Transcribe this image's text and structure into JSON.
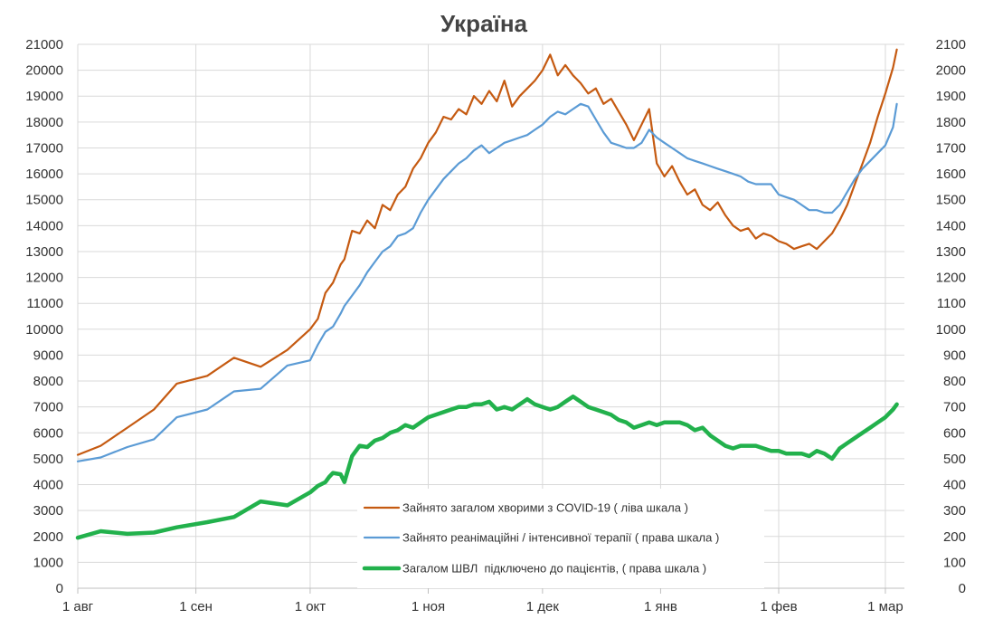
{
  "chart_data": {
    "type": "line",
    "title": "Україна",
    "x_ticks": [
      "1 авг",
      "1 сен",
      "1 окт",
      "1 ноя",
      "1 дек",
      "1 янв",
      "1 фев",
      "1 мар"
    ],
    "x_tick_day": [
      0,
      31,
      61,
      92,
      122,
      153,
      184,
      212
    ],
    "x_range": [
      0,
      217
    ],
    "left_axis": {
      "ylim": [
        0,
        21000
      ],
      "step": 1000,
      "ticks": [
        "0",
        "1000",
        "2000",
        "3000",
        "4000",
        "5000",
        "6000",
        "7000",
        "8000",
        "9000",
        "10000",
        "11000",
        "12000",
        "13000",
        "14000",
        "15000",
        "16000",
        "17000",
        "18000",
        "19000",
        "20000",
        "21000"
      ]
    },
    "right_axis": {
      "ylim": [
        0,
        2100
      ],
      "step": 100,
      "ticks": [
        "0",
        "100",
        "200",
        "300",
        "400",
        "500",
        "600",
        "700",
        "800",
        "900",
        "1000",
        "1100",
        "1200",
        "1300",
        "1400",
        "1500",
        "1600",
        "1700",
        "1800",
        "1900",
        "2000",
        "2100"
      ]
    },
    "x_unit": "days since 1 авг",
    "legend_position": "lower-center",
    "series": [
      {
        "name": "Зайнято загалом хворими з COVID-19 ( ліва шкала )",
        "axis": "left",
        "color": "#c55a11",
        "x": [
          0,
          6,
          13,
          20,
          26,
          34,
          41,
          48,
          55,
          61,
          63,
          65,
          66,
          67,
          69,
          70,
          72,
          74,
          76,
          78,
          80,
          82,
          84,
          86,
          88,
          90,
          92,
          94,
          96,
          98,
          100,
          102,
          104,
          106,
          108,
          110,
          112,
          114,
          116,
          118,
          120,
          122,
          124,
          126,
          128,
          130,
          132,
          134,
          136,
          138,
          140,
          142,
          144,
          146,
          148,
          150,
          152,
          154,
          156,
          158,
          160,
          162,
          164,
          166,
          168,
          170,
          172,
          174,
          176,
          178,
          180,
          182,
          184,
          186,
          188,
          190,
          192,
          194,
          196,
          198,
          200,
          202,
          204,
          206,
          208,
          210,
          212,
          214,
          215
        ],
        "values": [
          5150,
          5500,
          6200,
          6900,
          7900,
          8200,
          8900,
          8550,
          9200,
          10000,
          10400,
          11400,
          11600,
          11800,
          12500,
          12700,
          13800,
          13700,
          14200,
          13900,
          14800,
          14600,
          15200,
          15500,
          16200,
          16600,
          17200,
          17600,
          18200,
          18100,
          18500,
          18300,
          19000,
          18700,
          19200,
          18800,
          19600,
          18600,
          19000,
          19300,
          19600,
          20000,
          20600,
          19800,
          20200,
          19800,
          19500,
          19100,
          19300,
          18700,
          18900,
          18400,
          17900,
          17300,
          17900,
          18500,
          16400,
          15900,
          16300,
          15700,
          15200,
          15400,
          14800,
          14600,
          14900,
          14400,
          14000,
          13800,
          13900,
          13500,
          13700,
          13600,
          13400,
          13300,
          13100,
          13200,
          13300,
          13100,
          13400,
          13700,
          14200,
          14800,
          15600,
          16400,
          17200,
          18200,
          19100,
          20100,
          20800
        ]
      },
      {
        "name": "Зайнято реанімаційні / інтенсивної терапії ( права шкала )",
        "axis": "right",
        "color": "#5b9bd5",
        "x": [
          0,
          6,
          13,
          20,
          26,
          34,
          41,
          48,
          55,
          61,
          63,
          65,
          66,
          67,
          69,
          70,
          72,
          74,
          76,
          78,
          80,
          82,
          84,
          86,
          88,
          90,
          92,
          94,
          96,
          98,
          100,
          102,
          104,
          106,
          108,
          110,
          112,
          114,
          116,
          118,
          120,
          122,
          124,
          126,
          128,
          130,
          132,
          134,
          136,
          138,
          140,
          142,
          144,
          146,
          148,
          150,
          152,
          154,
          156,
          158,
          160,
          162,
          164,
          166,
          168,
          170,
          172,
          174,
          176,
          178,
          180,
          182,
          184,
          186,
          188,
          190,
          192,
          194,
          196,
          198,
          200,
          202,
          204,
          206,
          208,
          210,
          212,
          214,
          215
        ],
        "values": [
          490,
          505,
          545,
          575,
          660,
          690,
          760,
          770,
          860,
          880,
          940,
          990,
          1000,
          1010,
          1060,
          1090,
          1130,
          1170,
          1220,
          1260,
          1300,
          1320,
          1360,
          1370,
          1390,
          1450,
          1500,
          1540,
          1580,
          1610,
          1640,
          1660,
          1690,
          1710,
          1680,
          1700,
          1720,
          1730,
          1740,
          1750,
          1770,
          1790,
          1820,
          1840,
          1830,
          1850,
          1870,
          1860,
          1810,
          1760,
          1720,
          1710,
          1700,
          1700,
          1720,
          1770,
          1740,
          1720,
          1700,
          1680,
          1660,
          1650,
          1640,
          1630,
          1620,
          1610,
          1600,
          1590,
          1570,
          1560,
          1560,
          1560,
          1520,
          1510,
          1500,
          1480,
          1460,
          1460,
          1450,
          1450,
          1480,
          1530,
          1580,
          1620,
          1650,
          1680,
          1710,
          1780,
          1870
        ]
      },
      {
        "name": "Загалом ШВЛ  підключено до пацієнтів, ( права шкала )",
        "axis": "right",
        "color": "#22b14c",
        "x": [
          0,
          6,
          13,
          20,
          26,
          34,
          41,
          48,
          55,
          61,
          63,
          65,
          66,
          67,
          69,
          70,
          72,
          74,
          76,
          78,
          80,
          82,
          84,
          86,
          88,
          90,
          92,
          94,
          96,
          98,
          100,
          102,
          104,
          106,
          108,
          110,
          112,
          114,
          116,
          118,
          120,
          122,
          124,
          126,
          128,
          130,
          132,
          134,
          136,
          138,
          140,
          142,
          144,
          146,
          148,
          150,
          152,
          154,
          156,
          158,
          160,
          162,
          164,
          166,
          168,
          170,
          172,
          174,
          176,
          178,
          180,
          182,
          184,
          186,
          188,
          190,
          192,
          194,
          196,
          198,
          200,
          202,
          204,
          206,
          208,
          210,
          212,
          214,
          215
        ],
        "values": [
          195,
          220,
          210,
          215,
          235,
          255,
          275,
          335,
          320,
          370,
          395,
          410,
          430,
          445,
          440,
          410,
          510,
          550,
          545,
          570,
          580,
          600,
          610,
          630,
          620,
          640,
          660,
          670,
          680,
          690,
          700,
          700,
          710,
          710,
          720,
          690,
          700,
          690,
          710,
          730,
          710,
          700,
          690,
          700,
          720,
          740,
          720,
          700,
          690,
          680,
          670,
          650,
          640,
          620,
          630,
          640,
          630,
          640,
          640,
          640,
          630,
          610,
          620,
          590,
          570,
          550,
          540,
          550,
          550,
          550,
          540,
          530,
          530,
          520,
          520,
          520,
          510,
          530,
          520,
          500,
          540,
          560,
          580,
          600,
          620,
          640,
          660,
          690,
          710
        ]
      }
    ]
  }
}
